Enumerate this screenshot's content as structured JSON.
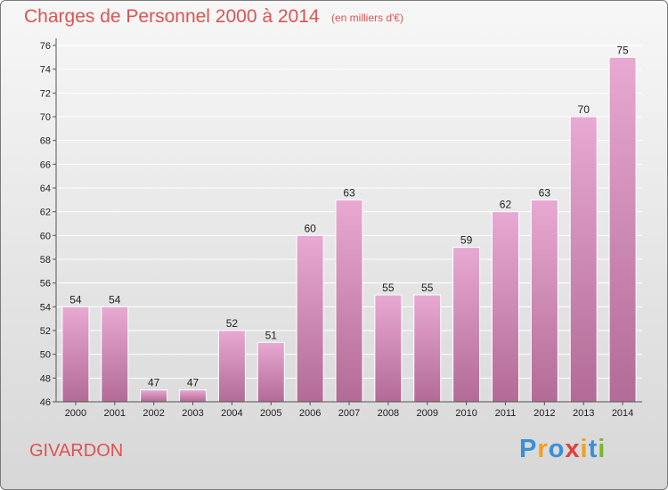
{
  "header": {
    "title": "Charges de Personnel 2000 à 2014",
    "subtitle": "(en milliers d'€)"
  },
  "footer": {
    "commune": "GIVARDON",
    "logo_text": "Proxiti"
  },
  "colors": {
    "bar_top": "#e8a9d2",
    "bar_bottom": "#b26b96",
    "title": "#e05252",
    "logo": [
      "#3a8fd8",
      "#f0a020",
      "#3a8fd8",
      "#e04040",
      "#f0a020",
      "#3a8fd8",
      "#77b82a"
    ]
  },
  "chart_data": {
    "type": "bar",
    "title": "Charges de Personnel 2000 à 2014",
    "subtitle": "(en milliers d'€)",
    "xlabel": "",
    "ylabel": "",
    "categories": [
      "2000",
      "2001",
      "2002",
      "2003",
      "2004",
      "2005",
      "2006",
      "2007",
      "2008",
      "2009",
      "2010",
      "2011",
      "2012",
      "2013",
      "2014"
    ],
    "values": [
      54,
      54,
      47,
      47,
      52,
      51,
      60,
      63,
      55,
      55,
      59,
      62,
      63,
      70,
      75
    ],
    "ylim": [
      46,
      76
    ],
    "yticks": [
      46,
      48,
      50,
      52,
      54,
      56,
      58,
      60,
      62,
      64,
      66,
      68,
      70,
      72,
      74,
      76
    ],
    "grid": true,
    "legend": "none"
  }
}
